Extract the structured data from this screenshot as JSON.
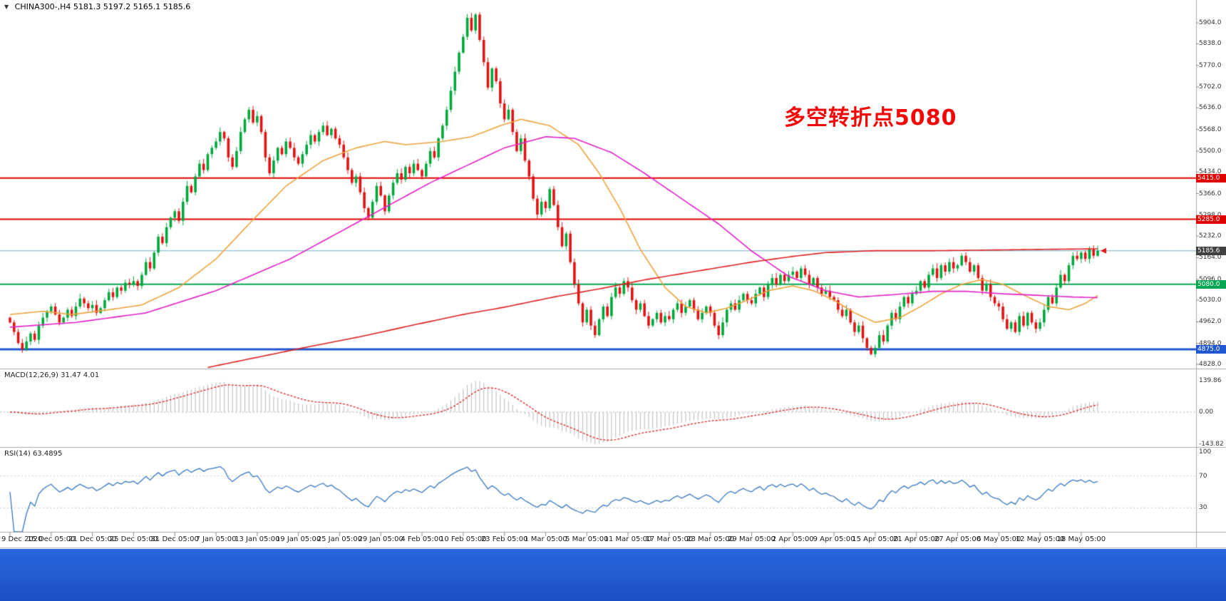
{
  "header": {
    "symbol_line": "CHINA300-,H4  5181.3 5197.2 5165.1 5185.6",
    "collapse_icon": "▼"
  },
  "annotation": {
    "text": "多空转折点5080",
    "color": "#f40606"
  },
  "axis": {
    "price_tags": [
      {
        "label": "5415.0",
        "price": 5415.0,
        "color": "#e00000"
      },
      {
        "label": "5285.0",
        "price": 5285.0,
        "color": "#e00000"
      },
      {
        "label": "5185.6",
        "price": 5185.6,
        "color": "#404040"
      },
      {
        "label": "5080.0",
        "price": 5080.0,
        "color": "#00a651"
      },
      {
        "label": "4875.0",
        "price": 4875.0,
        "color": "#2056d0"
      }
    ]
  },
  "taskbar": {
    "color": "#2059d2"
  },
  "chart_data": [
    {
      "type": "candlestick",
      "symbol": "CHINA300-",
      "timeframe": "H4",
      "ohlc": {
        "open": 5181.3,
        "high": 5197.2,
        "low": 5165.1,
        "close": 5185.6
      },
      "up_color": "#00a83c",
      "down_color": "#e01414",
      "ylim": [
        4828,
        5938
      ],
      "y_ticks": [
        5904.0,
        5838.0,
        5770.0,
        5702.0,
        5636.0,
        5568.0,
        5500.0,
        5434.0,
        5366.0,
        5298.0,
        5232.0,
        5164.0,
        5096.0,
        5030.0,
        4962.0,
        4894.0,
        4828.0
      ],
      "x_labels": [
        "9 Dec 2020",
        "15 Dec 05:00",
        "21 Dec 05:00",
        "25 Dec 05:00",
        "31 Dec 05:00",
        "7 Jan 05:00",
        "13 Jan 05:00",
        "19 Jan 05:00",
        "25 Jan 05:00",
        "29 Jan 05:00",
        "4 Feb 05:00",
        "10 Feb 05:00",
        "23 Feb 05:00",
        "1 Mar 05:00",
        "5 Mar 05:00",
        "11 Mar 05:00",
        "17 Mar 05:00",
        "23 Mar 05:00",
        "29 Mar 05:00",
        "2 Apr 05:00",
        "9 Apr 05:00",
        "15 Apr 05:00",
        "21 Apr 05:00",
        "27 Apr 05:00",
        "6 May 05:00",
        "12 May 05:00",
        "18 May 05:00"
      ],
      "bars_per_label": 10,
      "closes": [
        4960,
        4930,
        4895,
        4875,
        4900,
        4925,
        4905,
        4950,
        4975,
        4995,
        5010,
        4985,
        4960,
        4975,
        5000,
        4980,
        5010,
        5035,
        5020,
        5005,
        5015,
        4990,
        5005,
        5030,
        5055,
        5040,
        5070,
        5060,
        5085,
        5080,
        5090,
        5075,
        5110,
        5150,
        5130,
        5180,
        5230,
        5210,
        5260,
        5290,
        5310,
        5280,
        5340,
        5390,
        5370,
        5420,
        5460,
        5440,
        5490,
        5510,
        5530,
        5560,
        5540,
        5480,
        5450,
        5500,
        5560,
        5600,
        5630,
        5590,
        5610,
        5560,
        5480,
        5430,
        5470,
        5510,
        5490,
        5530,
        5510,
        5480,
        5460,
        5490,
        5520,
        5550,
        5530,
        5560,
        5580,
        5550,
        5570,
        5540,
        5520,
        5480,
        5440,
        5400,
        5420,
        5370,
        5320,
        5290,
        5340,
        5390,
        5360,
        5310,
        5360,
        5400,
        5430,
        5410,
        5450,
        5430,
        5460,
        5440,
        5420,
        5460,
        5500,
        5480,
        5540,
        5580,
        5630,
        5690,
        5750,
        5810,
        5860,
        5920,
        5880,
        5930,
        5850,
        5780,
        5700,
        5760,
        5720,
        5650,
        5600,
        5630,
        5560,
        5500,
        5540,
        5470,
        5420,
        5350,
        5300,
        5340,
        5320,
        5380,
        5330,
        5260,
        5200,
        5240,
        5150,
        5080,
        5020,
        4960,
        5000,
        4950,
        4920,
        4970,
        5010,
        4980,
        5040,
        5070,
        5050,
        5090,
        5070,
        5030,
        5000,
        5020,
        4980,
        4950,
        4970,
        4990,
        4960,
        4980,
        4970,
        5000,
        5020,
        4990,
        5010,
        5030,
        5000,
        4970,
        4990,
        5010,
        4990,
        4950,
        4920,
        4960,
        5000,
        5020,
        5000,
        5030,
        5050,
        5030,
        5020,
        5050,
        5070,
        5040,
        5080,
        5100,
        5080,
        5110,
        5090,
        5110,
        5120,
        5100,
        5130,
        5110,
        5080,
        5100,
        5070,
        5050,
        5060,
        5040,
        5030,
        5000,
        4980,
        5000,
        4960,
        4930,
        4950,
        4910,
        4880,
        4860,
        4880,
        4920,
        4900,
        4950,
        4990,
        4970,
        5010,
        5040,
        5020,
        5050,
        5060,
        5090,
        5070,
        5110,
        5130,
        5100,
        5140,
        5120,
        5150,
        5130,
        5140,
        5170,
        5150,
        5120,
        5140,
        5100,
        5060,
        5080,
        5040,
        5020,
        5010,
        4970,
        4940,
        4960,
        4930,
        4980,
        4950,
        4990,
        4960,
        4940,
        4960,
        5000,
        5040,
        5020,
        5070,
        5110,
        5090,
        5140,
        5170,
        5160,
        5180,
        5160,
        5190,
        5170,
        5185.6
      ],
      "levels": [
        {
          "name": "resistance-5415",
          "price": 5415.0,
          "color": "#e00000",
          "width": 2
        },
        {
          "name": "resistance-5285",
          "price": 5285.0,
          "color": "#e00000",
          "width": 2
        },
        {
          "name": "bid-line",
          "price": 5185.6,
          "color": "#74aec6",
          "width": 1
        },
        {
          "name": "pivot-5080",
          "price": 5080.0,
          "color": "#00a651",
          "width": 2
        },
        {
          "name": "support-4875",
          "price": 4875.0,
          "color": "#2056d0",
          "width": 3
        }
      ],
      "moving_averages": [
        {
          "name": "ma-fast",
          "color": "#eda33b",
          "points": [
            [
              0,
              4985
            ],
            [
              8,
              4995
            ],
            [
              15,
              4985
            ],
            [
              24,
              5000
            ],
            [
              32,
              5015
            ],
            [
              41,
              5070
            ],
            [
              50,
              5160
            ],
            [
              58,
              5270
            ],
            [
              67,
              5390
            ],
            [
              76,
              5470
            ],
            [
              84,
              5510
            ],
            [
              91,
              5530
            ],
            [
              96,
              5520
            ],
            [
              105,
              5530
            ],
            [
              112,
              5545
            ],
            [
              119,
              5580
            ],
            [
              124,
              5600
            ],
            [
              131,
              5580
            ],
            [
              138,
              5520
            ],
            [
              143,
              5430
            ],
            [
              148,
              5320
            ],
            [
              153,
              5190
            ],
            [
              159,
              5070
            ],
            [
              164,
              5010
            ],
            [
              169,
              4990
            ],
            [
              174,
              5005
            ],
            [
              179,
              5030
            ],
            [
              184,
              5060
            ],
            [
              190,
              5075
            ],
            [
              195,
              5060
            ],
            [
              200,
              5030
            ],
            [
              205,
              4990
            ],
            [
              210,
              4960
            ],
            [
              216,
              4975
            ],
            [
              221,
              5010
            ],
            [
              226,
              5050
            ],
            [
              231,
              5080
            ],
            [
              236,
              5095
            ],
            [
              241,
              5080
            ],
            [
              247,
              5040
            ],
            [
              252,
              5010
            ],
            [
              257,
              5000
            ],
            [
              261,
              5020
            ],
            [
              264,
              5045
            ]
          ]
        },
        {
          "name": "ma-mid",
          "color": "#e321c7",
          "points": [
            [
              0,
              4945
            ],
            [
              16,
              4960
            ],
            [
              33,
              4990
            ],
            [
              50,
              5060
            ],
            [
              68,
              5160
            ],
            [
              85,
              5280
            ],
            [
              102,
              5400
            ],
            [
              120,
              5510
            ],
            [
              130,
              5545
            ],
            [
              137,
              5540
            ],
            [
              146,
              5495
            ],
            [
              154,
              5430
            ],
            [
              163,
              5350
            ],
            [
              172,
              5270
            ],
            [
              180,
              5185
            ],
            [
              189,
              5105
            ],
            [
              198,
              5060
            ],
            [
              206,
              5040
            ],
            [
              215,
              5048
            ],
            [
              224,
              5058
            ],
            [
              232,
              5058
            ],
            [
              241,
              5050
            ],
            [
              250,
              5045
            ],
            [
              258,
              5040
            ],
            [
              264,
              5038
            ]
          ]
        },
        {
          "name": "ma-slow",
          "color": "#e02020",
          "points": [
            [
              48,
              4818
            ],
            [
              60,
              4850
            ],
            [
              72,
              4882
            ],
            [
              85,
              4915
            ],
            [
              98,
              4952
            ],
            [
              110,
              4985
            ],
            [
              120,
              5008
            ],
            [
              132,
              5040
            ],
            [
              144,
              5068
            ],
            [
              154,
              5094
            ],
            [
              166,
              5120
            ],
            [
              180,
              5150
            ],
            [
              190,
              5168
            ],
            [
              198,
              5180
            ],
            [
              210,
              5186
            ],
            [
              224,
              5186
            ],
            [
              238,
              5188
            ],
            [
              250,
              5190
            ],
            [
              264,
              5192
            ]
          ]
        }
      ]
    },
    {
      "type": "macd",
      "label": "MACD(12,26,9) 31.47 4.01",
      "fast": 12,
      "slow": 26,
      "signal": 9,
      "current": {
        "macd": 31.47,
        "signal": 4.01
      },
      "y_ticks": [
        139.86,
        0.0,
        -143.82
      ],
      "histogram_color": "#b8b8b8",
      "signal_color": "#e02020"
    },
    {
      "type": "rsi",
      "label": "RSI(14) 63.4895",
      "period": 14,
      "current": 63.4895,
      "levels": [
        70,
        30
      ],
      "y_ticks": [
        100,
        70,
        30
      ],
      "line_color": "#3878c0"
    }
  ]
}
